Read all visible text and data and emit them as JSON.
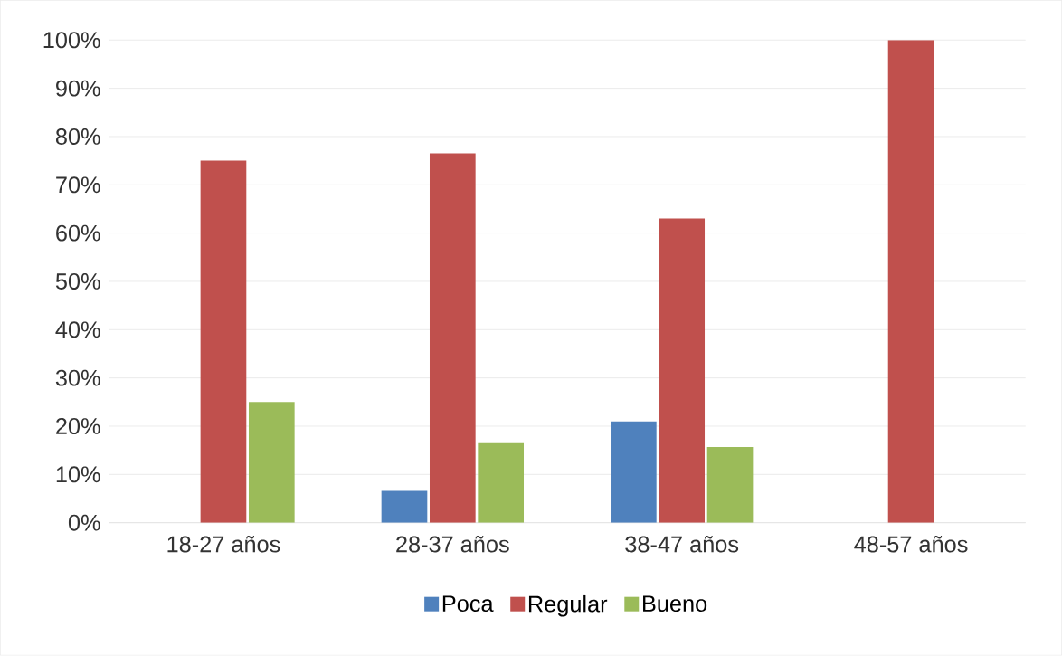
{
  "chart_data": {
    "type": "bar",
    "categories": [
      "18-27 años",
      "28-37 años",
      "38-47 años",
      "48-57 años"
    ],
    "series": [
      {
        "name": "Poca",
        "color": "#4f81bd",
        "values": [
          0,
          6.6,
          21,
          0
        ]
      },
      {
        "name": "Regular",
        "color": "#c0504d",
        "values": [
          75,
          76.5,
          63,
          100
        ]
      },
      {
        "name": "Bueno",
        "color": "#9bbb59",
        "values": [
          25,
          16.5,
          15.7,
          0
        ]
      }
    ],
    "ylim": [
      0,
      100
    ],
    "yticks": [
      {
        "value": 0,
        "label": "0%"
      },
      {
        "value": 10,
        "label": "10%"
      },
      {
        "value": 20,
        "label": "20%"
      },
      {
        "value": 30,
        "label": "30%"
      },
      {
        "value": 40,
        "label": "40%"
      },
      {
        "value": 50,
        "label": "50%"
      },
      {
        "value": 60,
        "label": "60%"
      },
      {
        "value": 70,
        "label": "70%"
      },
      {
        "value": 80,
        "label": "80%"
      },
      {
        "value": 90,
        "label": "90%"
      },
      {
        "value": 100,
        "label": "100%"
      }
    ],
    "grid": "y",
    "legend": "bottom"
  }
}
